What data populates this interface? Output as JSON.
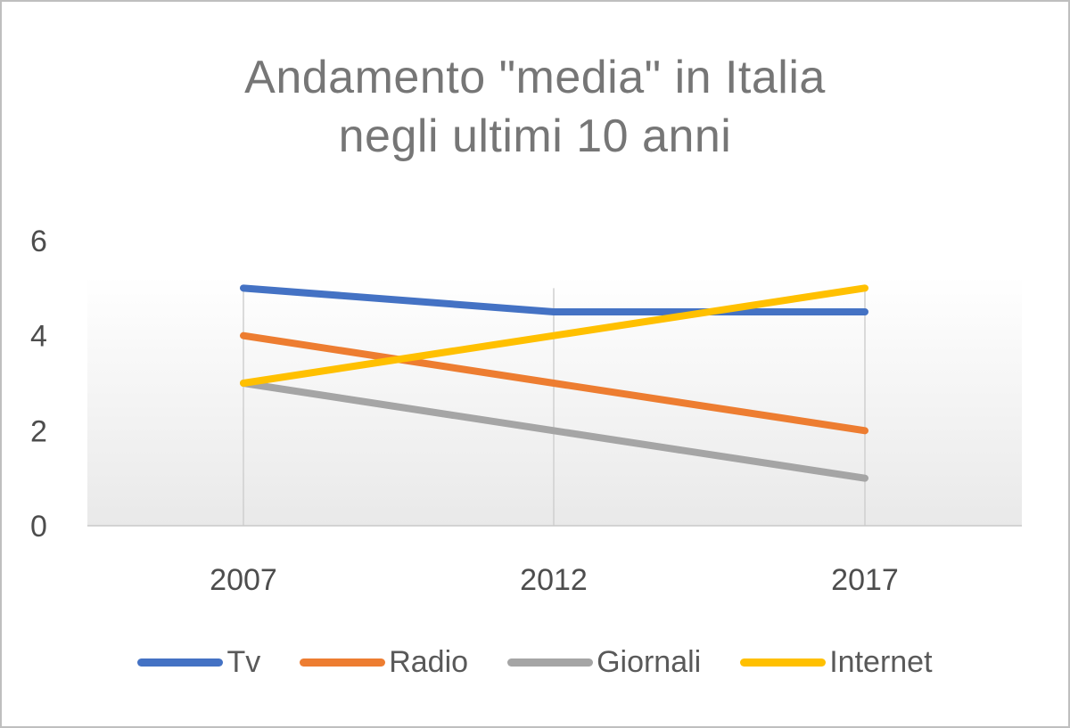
{
  "chart_data": {
    "type": "line",
    "title_lines": [
      "Andamento  \"media\"  in Italia",
      "negli ultimi 10 anni"
    ],
    "xlabel": "",
    "ylabel": "",
    "categories": [
      "2007",
      "2012",
      "2017"
    ],
    "ylim": [
      0,
      6
    ],
    "yticks": [
      0,
      2,
      4,
      6
    ],
    "grid": "vertical",
    "legend_position": "bottom",
    "series": [
      {
        "name": "Tv",
        "values": [
          5,
          4.5,
          4.5
        ],
        "color": "#4472c4"
      },
      {
        "name": "Radio",
        "values": [
          4,
          3,
          2
        ],
        "color": "#ed7d31"
      },
      {
        "name": "Giornali",
        "values": [
          3,
          2,
          1
        ],
        "color": "#a5a5a5"
      },
      {
        "name": "Internet",
        "values": [
          3,
          4,
          5
        ],
        "color": "#ffc000"
      }
    ]
  }
}
